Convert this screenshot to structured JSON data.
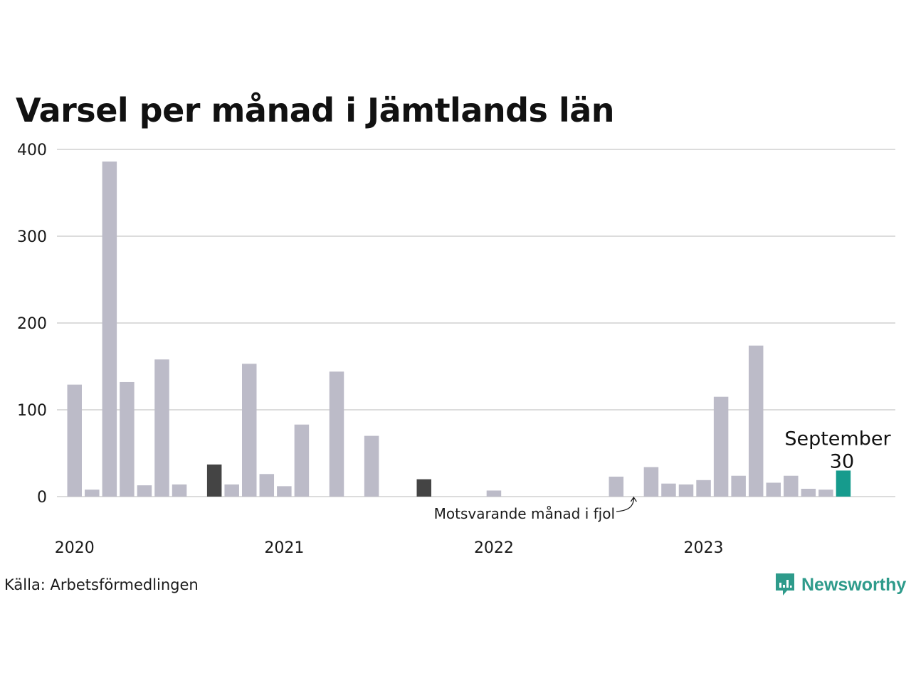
{
  "colors": {
    "background": "#ffffff",
    "grid": "#dcdcdc",
    "bar_default": "#bcbbc8",
    "bar_same_month_previous_years": "#444444",
    "bar_current": "#169b8d",
    "brand": "#2e9b8b",
    "text": "#1a1a1a"
  },
  "chart_data": {
    "type": "bar",
    "title": "Varsel per månad i Jämtlands län",
    "ylim": [
      0,
      400
    ],
    "yticks": [
      0,
      100,
      200,
      300,
      400
    ],
    "grid": true,
    "year_labels": [
      {
        "label": "2020",
        "month_index": 0
      },
      {
        "label": "2021",
        "month_index": 12
      },
      {
        "label": "2022",
        "month_index": 24
      },
      {
        "label": "2023",
        "month_index": 36
      }
    ],
    "months": [
      "2020-01",
      "2020-02",
      "2020-03",
      "2020-04",
      "2020-05",
      "2020-06",
      "2020-07",
      "2020-08",
      "2020-09",
      "2020-10",
      "2020-11",
      "2020-12",
      "2021-01",
      "2021-02",
      "2021-03",
      "2021-04",
      "2021-05",
      "2021-06",
      "2021-07",
      "2021-08",
      "2021-09",
      "2021-10",
      "2021-11",
      "2021-12",
      "2022-01",
      "2022-02",
      "2022-03",
      "2022-04",
      "2022-05",
      "2022-06",
      "2022-07",
      "2022-08",
      "2022-09",
      "2022-10",
      "2022-11",
      "2022-12",
      "2023-01",
      "2023-02",
      "2023-03",
      "2023-04",
      "2023-05",
      "2023-06",
      "2023-07",
      "2023-08",
      "2023-09"
    ],
    "values": [
      129,
      8,
      386,
      132,
      13,
      158,
      14,
      0,
      37,
      14,
      153,
      26,
      12,
      83,
      0,
      144,
      0,
      70,
      0,
      0,
      20,
      0,
      0,
      0,
      7,
      0,
      0,
      0,
      0,
      0,
      0,
      23,
      0,
      34,
      15,
      14,
      19,
      115,
      24,
      174,
      16,
      24,
      9,
      8,
      30
    ],
    "highlight_same_month_indices": [
      8,
      20,
      32
    ],
    "current_index": 44,
    "current_label": {
      "month": "September",
      "value": "30"
    },
    "annotation": {
      "text": "Motsvarande månad i fjol",
      "target_index": 32
    }
  },
  "footer": {
    "source": "Källa: Arbetsförmedlingen",
    "brand": "Newsworthy"
  }
}
